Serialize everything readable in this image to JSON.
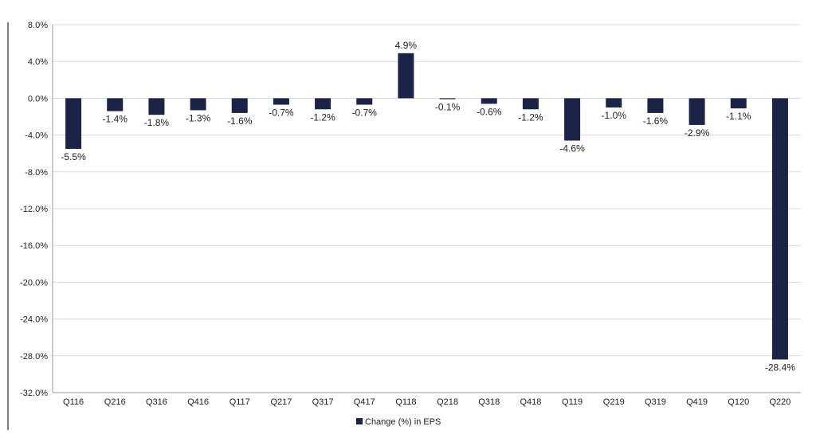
{
  "chart_data": {
    "type": "bar",
    "categories": [
      "Q116",
      "Q216",
      "Q316",
      "Q416",
      "Q117",
      "Q217",
      "Q317",
      "Q417",
      "Q118",
      "Q218",
      "Q318",
      "Q418",
      "Q119",
      "Q219",
      "Q319",
      "Q419",
      "Q120",
      "Q220"
    ],
    "series": [
      {
        "name": "Change (%) in EPS",
        "values": [
          -5.5,
          -1.4,
          -1.8,
          -1.3,
          -1.6,
          -0.7,
          -1.2,
          -0.7,
          4.9,
          -0.1,
          -0.6,
          -1.2,
          -4.6,
          -1.0,
          -1.6,
          -2.9,
          -1.1,
          -28.4
        ],
        "labels": [
          "-5.5%",
          "-1.4%",
          "-1.8%",
          "-1.3%",
          "-1.6%",
          "-0.7%",
          "-1.2%",
          "-0.7%",
          "4.9%",
          "-0.1%",
          "-0.6%",
          "-1.2%",
          "-4.6%",
          "-1.0%",
          "-1.6%",
          "-2.9%",
          "-1.1%",
          "-28.4%"
        ]
      }
    ],
    "ylim": [
      -32,
      8
    ],
    "yticks": [
      8,
      4,
      0,
      -4,
      -8,
      -12,
      -16,
      -20,
      -24,
      -28,
      -32
    ],
    "ytick_labels": [
      "8.0%",
      "4.0%",
      "0.0%",
      "-4.0%",
      "-8.0%",
      "-12.0%",
      "-16.0%",
      "-20.0%",
      "-24.0%",
      "-28.0%",
      "-32.0%"
    ],
    "legend": {
      "label": "Change (%) in EPS",
      "position": "bottom"
    },
    "grid": true,
    "colors": {
      "bar": "#1b2447",
      "grid": "#d9d9d9",
      "axis": "#9a9a9a",
      "border": "#555555"
    }
  }
}
